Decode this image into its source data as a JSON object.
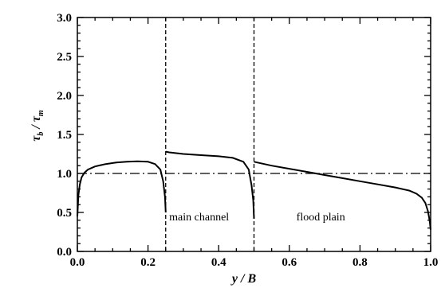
{
  "chart_data": {
    "type": "line",
    "xlabel": "y / B",
    "ylabel_main": "τ",
    "ylabel_sub1": "b",
    "ylabel_mid": " / τ",
    "ylabel_sub2": "m",
    "xlim": [
      0,
      1
    ],
    "ylim": [
      0,
      3
    ],
    "x_ticks": [
      0,
      0.2,
      0.4,
      0.6,
      0.8,
      1.0
    ],
    "x_tick_labels": [
      "0.0",
      "0.2",
      "0.4",
      "0.6",
      "0.8",
      "1.0"
    ],
    "y_ticks": [
      0,
      0.5,
      1.0,
      1.5,
      2.0,
      2.5,
      3.0
    ],
    "y_tick_labels": [
      "0.0",
      "0.5",
      "1.0",
      "1.5",
      "2.0",
      "2.5",
      "3.0"
    ],
    "reference_line": {
      "y": 1.0,
      "style": "dash-dot"
    },
    "dividers": [
      0.25,
      0.5
    ],
    "annotations": [
      {
        "text": "main channel",
        "x": 0.26,
        "y": 0.45
      },
      {
        "text": "flood plain",
        "x": 0.62,
        "y": 0.45
      }
    ],
    "series": [
      {
        "segment": "left-main-channel",
        "x": [
          0.0,
          0.003,
          0.007,
          0.012,
          0.02,
          0.03,
          0.05,
          0.08,
          0.11,
          0.14,
          0.17,
          0.2,
          0.22,
          0.235,
          0.243,
          0.248,
          0.25
        ],
        "y": [
          0.45,
          0.72,
          0.86,
          0.95,
          1.01,
          1.05,
          1.09,
          1.12,
          1.14,
          1.15,
          1.155,
          1.15,
          1.12,
          1.05,
          0.9,
          0.7,
          0.5
        ]
      },
      {
        "segment": "right-main-channel",
        "x": [
          0.25,
          0.26,
          0.3,
          0.35,
          0.4,
          0.44,
          0.47,
          0.485,
          0.493,
          0.498,
          0.5
        ],
        "y": [
          1.28,
          1.27,
          1.25,
          1.235,
          1.22,
          1.2,
          1.15,
          1.05,
          0.85,
          0.65,
          0.42
        ]
      },
      {
        "segment": "flood-plain",
        "x": [
          0.5,
          0.51,
          0.55,
          0.6,
          0.65,
          0.7,
          0.75,
          0.8,
          0.85,
          0.9,
          0.94,
          0.96,
          0.975,
          0.985,
          0.992,
          0.997,
          1.0
        ],
        "y": [
          1.15,
          1.14,
          1.1,
          1.06,
          1.02,
          0.98,
          0.94,
          0.9,
          0.86,
          0.82,
          0.78,
          0.74,
          0.69,
          0.62,
          0.52,
          0.4,
          0.28
        ]
      }
    ]
  }
}
